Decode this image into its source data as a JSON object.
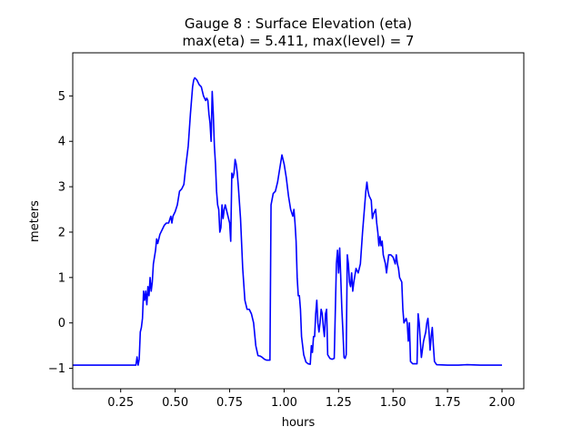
{
  "chart_data": {
    "type": "line",
    "title": "Gauge 8 : Surface Elevation (eta)",
    "subtitle": "max(eta) =   5.411,    max(level) = 7",
    "xlabel": "hours",
    "ylabel": "meters",
    "xlim": [
      0.03,
      2.1
    ],
    "ylim": [
      -1.45,
      5.95
    ],
    "grid": false,
    "xticks": [
      {
        "value": 0.25,
        "label": "0.25"
      },
      {
        "value": 0.5,
        "label": "0.50"
      },
      {
        "value": 0.75,
        "label": "0.75"
      },
      {
        "value": 1.0,
        "label": "1.00"
      },
      {
        "value": 1.25,
        "label": "1.25"
      },
      {
        "value": 1.5,
        "label": "1.50"
      },
      {
        "value": 1.75,
        "label": "1.75"
      },
      {
        "value": 2.0,
        "label": "2.00"
      }
    ],
    "yticks": [
      {
        "value": -1,
        "label": "−1"
      },
      {
        "value": 0,
        "label": "0"
      },
      {
        "value": 1,
        "label": "1"
      },
      {
        "value": 2,
        "label": "2"
      },
      {
        "value": 3,
        "label": "3"
      },
      {
        "value": 4,
        "label": "4"
      },
      {
        "value": 5,
        "label": "5"
      }
    ],
    "series": [
      {
        "color": "#0000ff",
        "points": [
          [
            0.03,
            -0.93
          ],
          [
            0.3,
            -0.93
          ],
          [
            0.32,
            -0.93
          ],
          [
            0.325,
            -0.75
          ],
          [
            0.33,
            -0.93
          ],
          [
            0.335,
            -0.8
          ],
          [
            0.34,
            -0.2
          ],
          [
            0.345,
            -0.1
          ],
          [
            0.35,
            0.1
          ],
          [
            0.355,
            0.7
          ],
          [
            0.36,
            0.5
          ],
          [
            0.365,
            0.7
          ],
          [
            0.37,
            0.4
          ],
          [
            0.375,
            0.8
          ],
          [
            0.38,
            0.6
          ],
          [
            0.385,
            1.0
          ],
          [
            0.39,
            0.7
          ],
          [
            0.395,
            0.9
          ],
          [
            0.4,
            1.3
          ],
          [
            0.41,
            1.6
          ],
          [
            0.415,
            1.85
          ],
          [
            0.42,
            1.75
          ],
          [
            0.43,
            1.95
          ],
          [
            0.44,
            2.05
          ],
          [
            0.45,
            2.15
          ],
          [
            0.46,
            2.2
          ],
          [
            0.47,
            2.2
          ],
          [
            0.48,
            2.35
          ],
          [
            0.485,
            2.2
          ],
          [
            0.49,
            2.35
          ],
          [
            0.5,
            2.45
          ],
          [
            0.51,
            2.6
          ],
          [
            0.52,
            2.9
          ],
          [
            0.53,
            2.95
          ],
          [
            0.54,
            3.05
          ],
          [
            0.55,
            3.5
          ],
          [
            0.56,
            3.9
          ],
          [
            0.57,
            4.6
          ],
          [
            0.575,
            4.9
          ],
          [
            0.58,
            5.2
          ],
          [
            0.585,
            5.35
          ],
          [
            0.59,
            5.4
          ],
          [
            0.6,
            5.35
          ],
          [
            0.61,
            5.25
          ],
          [
            0.62,
            5.2
          ],
          [
            0.63,
            5.0
          ],
          [
            0.635,
            4.95
          ],
          [
            0.64,
            4.9
          ],
          [
            0.645,
            4.95
          ],
          [
            0.65,
            4.9
          ],
          [
            0.655,
            4.6
          ],
          [
            0.66,
            4.4
          ],
          [
            0.665,
            4.0
          ],
          [
            0.67,
            5.1
          ],
          [
            0.675,
            4.6
          ],
          [
            0.68,
            3.9
          ],
          [
            0.685,
            3.5
          ],
          [
            0.69,
            2.9
          ],
          [
            0.695,
            2.6
          ],
          [
            0.7,
            2.5
          ],
          [
            0.705,
            2.0
          ],
          [
            0.71,
            2.1
          ],
          [
            0.715,
            2.6
          ],
          [
            0.72,
            2.3
          ],
          [
            0.725,
            2.5
          ],
          [
            0.73,
            2.6
          ],
          [
            0.735,
            2.5
          ],
          [
            0.74,
            2.4
          ],
          [
            0.745,
            2.3
          ],
          [
            0.75,
            2.2
          ],
          [
            0.755,
            1.8
          ],
          [
            0.76,
            3.3
          ],
          [
            0.765,
            3.2
          ],
          [
            0.77,
            3.3
          ],
          [
            0.775,
            3.6
          ],
          [
            0.78,
            3.5
          ],
          [
            0.785,
            3.3
          ],
          [
            0.79,
            3.0
          ],
          [
            0.8,
            2.3
          ],
          [
            0.81,
            1.2
          ],
          [
            0.82,
            0.5
          ],
          [
            0.83,
            0.3
          ],
          [
            0.84,
            0.3
          ],
          [
            0.85,
            0.2
          ],
          [
            0.86,
            0.0
          ],
          [
            0.87,
            -0.5
          ],
          [
            0.88,
            -0.72
          ],
          [
            0.89,
            -0.73
          ],
          [
            0.9,
            -0.76
          ],
          [
            0.91,
            -0.8
          ],
          [
            0.92,
            -0.82
          ],
          [
            0.935,
            -0.82
          ],
          [
            0.94,
            2.6
          ],
          [
            0.95,
            2.85
          ],
          [
            0.96,
            2.9
          ],
          [
            0.97,
            3.1
          ],
          [
            0.98,
            3.4
          ],
          [
            0.99,
            3.7
          ],
          [
            1.0,
            3.5
          ],
          [
            1.01,
            3.2
          ],
          [
            1.02,
            2.8
          ],
          [
            1.03,
            2.5
          ],
          [
            1.04,
            2.35
          ],
          [
            1.045,
            2.5
          ],
          [
            1.05,
            2.2
          ],
          [
            1.055,
            1.8
          ],
          [
            1.06,
            1.0
          ],
          [
            1.065,
            0.6
          ],
          [
            1.07,
            0.6
          ],
          [
            1.075,
            0.3
          ],
          [
            1.08,
            -0.3
          ],
          [
            1.09,
            -0.7
          ],
          [
            1.1,
            -0.86
          ],
          [
            1.11,
            -0.9
          ],
          [
            1.12,
            -0.91
          ],
          [
            1.125,
            -0.5
          ],
          [
            1.13,
            -0.65
          ],
          [
            1.135,
            -0.3
          ],
          [
            1.14,
            -0.3
          ],
          [
            1.145,
            0.2
          ],
          [
            1.15,
            0.5
          ],
          [
            1.155,
            0.0
          ],
          [
            1.16,
            -0.2
          ],
          [
            1.165,
            0.0
          ],
          [
            1.17,
            0.3
          ],
          [
            1.175,
            0.2
          ],
          [
            1.18,
            -0.1
          ],
          [
            1.185,
            -0.3
          ],
          [
            1.19,
            0.2
          ],
          [
            1.195,
            0.3
          ],
          [
            1.2,
            -0.7
          ],
          [
            1.21,
            -0.78
          ],
          [
            1.22,
            -0.8
          ],
          [
            1.23,
            -0.78
          ],
          [
            1.24,
            1.3
          ],
          [
            1.245,
            1.6
          ],
          [
            1.25,
            1.1
          ],
          [
            1.255,
            1.65
          ],
          [
            1.26,
            1.0
          ],
          [
            1.265,
            0.3
          ],
          [
            1.27,
            -0.2
          ],
          [
            1.275,
            -0.76
          ],
          [
            1.28,
            -0.78
          ],
          [
            1.285,
            -0.7
          ],
          [
            1.29,
            1.5
          ],
          [
            1.295,
            1.3
          ],
          [
            1.3,
            0.9
          ],
          [
            1.305,
            0.8
          ],
          [
            1.31,
            1.1
          ],
          [
            1.315,
            0.7
          ],
          [
            1.32,
            0.9
          ],
          [
            1.33,
            1.2
          ],
          [
            1.34,
            1.1
          ],
          [
            1.35,
            1.3
          ],
          [
            1.36,
            2.0
          ],
          [
            1.37,
            2.6
          ],
          [
            1.375,
            2.9
          ],
          [
            1.38,
            3.1
          ],
          [
            1.385,
            2.9
          ],
          [
            1.39,
            2.8
          ],
          [
            1.4,
            2.7
          ],
          [
            1.405,
            2.3
          ],
          [
            1.41,
            2.4
          ],
          [
            1.42,
            2.5
          ],
          [
            1.425,
            2.2
          ],
          [
            1.43,
            2.0
          ],
          [
            1.435,
            1.7
          ],
          [
            1.44,
            1.9
          ],
          [
            1.445,
            1.7
          ],
          [
            1.45,
            1.8
          ],
          [
            1.455,
            1.5
          ],
          [
            1.46,
            1.4
          ],
          [
            1.465,
            1.3
          ],
          [
            1.47,
            1.1
          ],
          [
            1.48,
            1.5
          ],
          [
            1.49,
            1.5
          ],
          [
            1.5,
            1.45
          ],
          [
            1.51,
            1.3
          ],
          [
            1.515,
            1.5
          ],
          [
            1.52,
            1.3
          ],
          [
            1.525,
            1.2
          ],
          [
            1.53,
            1.0
          ],
          [
            1.54,
            0.9
          ],
          [
            1.545,
            0.3
          ],
          [
            1.55,
            0.0
          ],
          [
            1.56,
            0.1
          ],
          [
            1.565,
            0.0
          ],
          [
            1.57,
            -0.4
          ],
          [
            1.575,
            0.0
          ],
          [
            1.58,
            -0.85
          ],
          [
            1.59,
            -0.9
          ],
          [
            1.6,
            -0.9
          ],
          [
            1.61,
            -0.9
          ],
          [
            1.615,
            0.2
          ],
          [
            1.62,
            0.0
          ],
          [
            1.625,
            -0.4
          ],
          [
            1.63,
            -0.76
          ],
          [
            1.64,
            -0.4
          ],
          [
            1.65,
            -0.2
          ],
          [
            1.655,
            0.0
          ],
          [
            1.66,
            0.1
          ],
          [
            1.665,
            -0.2
          ],
          [
            1.67,
            -0.6
          ],
          [
            1.675,
            -0.3
          ],
          [
            1.68,
            -0.1
          ],
          [
            1.685,
            -0.5
          ],
          [
            1.69,
            -0.85
          ],
          [
            1.7,
            -0.92
          ],
          [
            1.75,
            -0.93
          ],
          [
            1.8,
            -0.93
          ],
          [
            1.84,
            -0.92
          ],
          [
            1.9,
            -0.93
          ],
          [
            2.0,
            -0.93
          ]
        ]
      }
    ]
  }
}
